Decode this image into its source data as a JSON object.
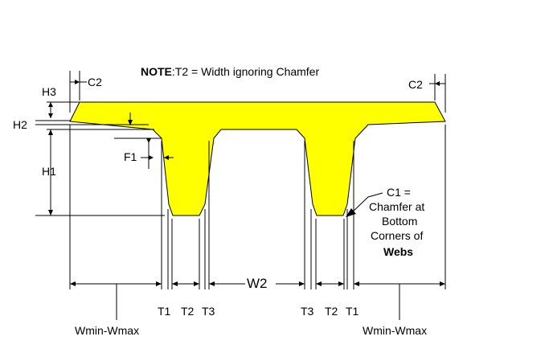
{
  "note": {
    "bold": "NOTE",
    "rest": ":T2 = Width ignoring Chamfer"
  },
  "labels": {
    "c2_left": "C2",
    "c2_right": "C2",
    "h3": "H3",
    "h2": "H2",
    "h1": "H1",
    "f1": "F1",
    "w2": "W2",
    "t1_a": "T1",
    "t2_a": "T2",
    "t3_a": "T3",
    "t3_b": "T3",
    "t2_b": "T2",
    "t1_b": "T1",
    "wmin_left": "Wmin-Wmax",
    "wmin_right": "Wmin-Wmax"
  },
  "c1_callout": {
    "line1": "C1 =",
    "line2": "Chamfer at",
    "line3": "Bottom",
    "line4": "Corners of",
    "line5": "Webs"
  },
  "colors": {
    "beam_fill": "#ffff00",
    "outline": "#000000"
  }
}
